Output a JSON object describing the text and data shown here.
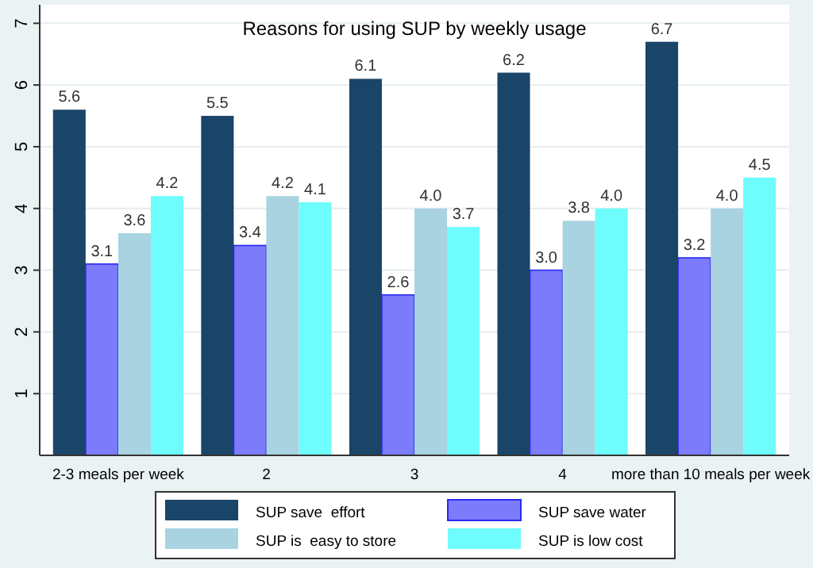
{
  "chart_data": {
    "type": "bar",
    "title": "Reasons for using SUP by weekly usage",
    "categories": [
      "2-3 meals per week",
      "2",
      "3",
      "4",
      "more than 10 meals per week"
    ],
    "series": [
      {
        "name": "SUP save  effort",
        "color": "#1a4468",
        "values": [
          5.6,
          5.5,
          6.1,
          6.2,
          6.7
        ],
        "value_labels": [
          "5.6",
          "5.5",
          "6.1",
          "6.2",
          "6.7"
        ]
      },
      {
        "name": "SUP save water",
        "color": "#7b7bfb",
        "values": [
          3.1,
          3.4,
          2.6,
          3.0,
          3.2
        ],
        "value_labels": [
          "3.1",
          "3.4",
          "2.6",
          "3.0",
          "3.2"
        ]
      },
      {
        "name": "SUP is  easy to store",
        "color": "#a9d3e0",
        "values": [
          3.6,
          4.2,
          4.0,
          3.8,
          4.0
        ],
        "value_labels": [
          "3.6",
          "4.2",
          "4.0",
          "3.8",
          "4.0"
        ]
      },
      {
        "name": "SUP is low cost",
        "color": "#6ffcfc",
        "values": [
          4.2,
          4.1,
          3.7,
          4.0,
          4.5
        ],
        "value_labels": [
          "4.2",
          "4.1",
          "3.7",
          "4.0",
          "4.5"
        ]
      }
    ],
    "ylim": [
      0,
      7.3
    ],
    "yticks": [
      1,
      2,
      3,
      4,
      5,
      6,
      7
    ],
    "grid": "y",
    "legend": "bottom"
  }
}
